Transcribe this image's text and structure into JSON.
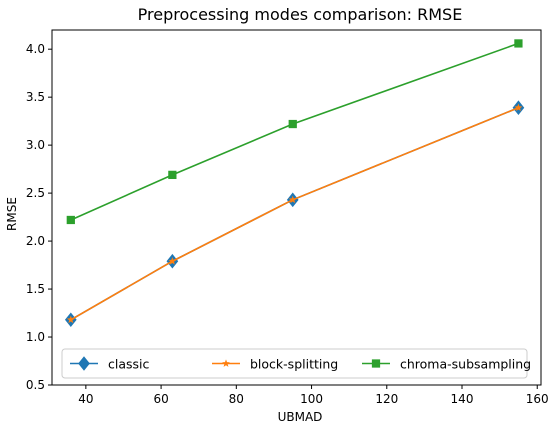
{
  "chart_data": {
    "type": "line",
    "title": "Preprocessing modes comparison: RMSE",
    "xlabel": "UBMAD",
    "ylabel": "RMSE",
    "xlim": [
      31,
      161
    ],
    "ylim": [
      0.5,
      4.2
    ],
    "xticks": [
      40,
      60,
      80,
      100,
      120,
      140,
      160
    ],
    "yticks": [
      0.5,
      1.0,
      1.5,
      2.0,
      2.5,
      3.0,
      3.5,
      4.0
    ],
    "xtick_labels": [
      "40",
      "60",
      "80",
      "100",
      "120",
      "140",
      "160"
    ],
    "ytick_labels": [
      "0.5",
      "1.0",
      "1.5",
      "2.0",
      "2.5",
      "3.0",
      "3.5",
      "4.0"
    ],
    "grid": false,
    "legend_position": "bottom",
    "series": [
      {
        "name": "classic",
        "color": "#1f77b4",
        "marker": "diamond",
        "x": [
          36,
          63,
          95,
          155
        ],
        "y": [
          1.18,
          1.79,
          2.43,
          3.39
        ]
      },
      {
        "name": "block-splitting",
        "color": "#ff7f0e",
        "marker": "star",
        "x": [
          36,
          63,
          95,
          155
        ],
        "y": [
          1.18,
          1.79,
          2.43,
          3.39
        ]
      },
      {
        "name": "chroma-subsampling",
        "color": "#2ca02c",
        "marker": "square",
        "x": [
          36,
          63,
          95,
          155
        ],
        "y": [
          2.22,
          2.69,
          3.22,
          4.06
        ]
      }
    ]
  }
}
